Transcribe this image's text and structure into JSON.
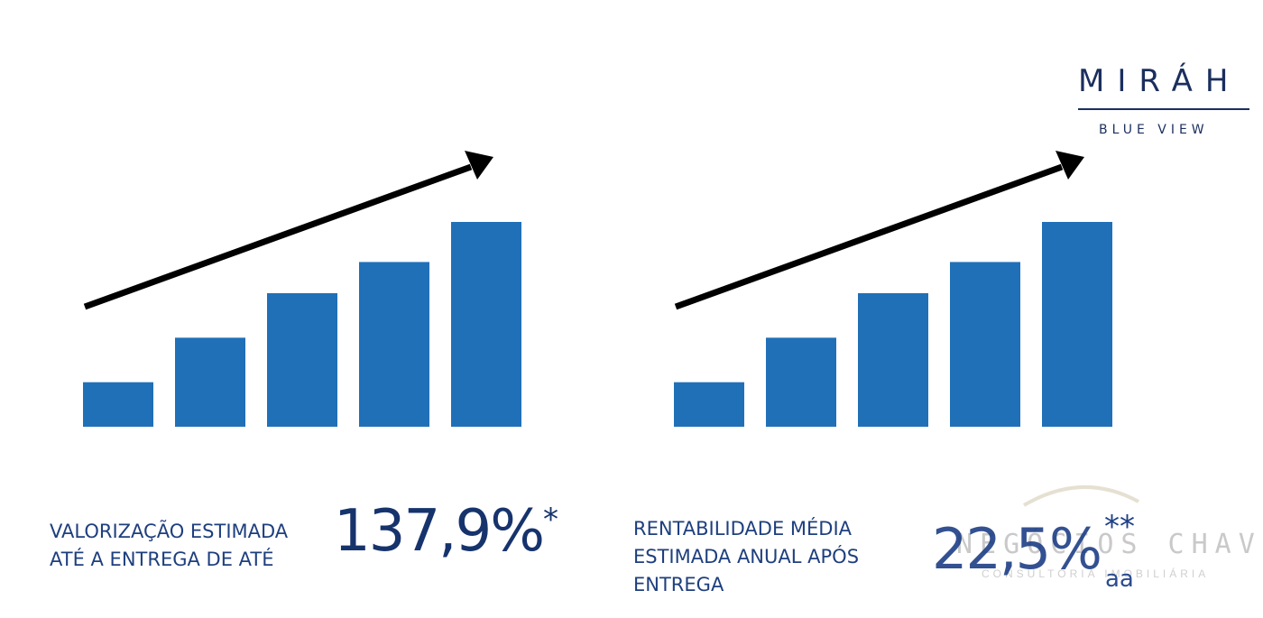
{
  "brand": {
    "name": "MIRÁH",
    "subtitle": "BLUE VIEW"
  },
  "colors": {
    "bar": "#2070b8",
    "arrow": "#000000",
    "text": "#1e3f7e",
    "brand": "#1b2f5e"
  },
  "charts": [
    {
      "icon": "rising-bar-chart-icon",
      "label_lines": [
        "VALORIZAÇÃO ESTIMADA",
        "ATÉ A ENTREGA DE ATÉ"
      ],
      "value": "137,9%",
      "marker": "*",
      "suffix": ""
    },
    {
      "icon": "rising-bar-chart-icon",
      "label_lines": [
        "RENTABILIDADE MÉDIA",
        "ESTIMADA ANUAL APÓS",
        "ENTREGA"
      ],
      "value": "22,5%",
      "marker": "**",
      "suffix": "aa"
    }
  ],
  "chart_data": {
    "type": "bar",
    "values": [
      1,
      2,
      3,
      3.7,
      4.6
    ]
  },
  "watermark": {
    "title": "NEGÓCIOS CHAVES",
    "subtitle": "CONSULTORIA IMOBILIÁRIA"
  }
}
